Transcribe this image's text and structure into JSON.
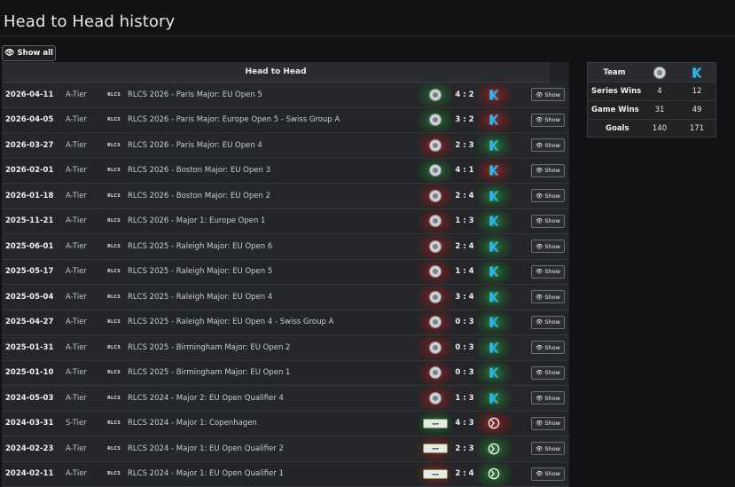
{
  "page": {
    "title": "Head to Head history"
  },
  "controls": {
    "show_all_label": "Show all"
  },
  "h2h": {
    "header": "Head to Head",
    "rows": [
      {
        "date": "2026-04-11",
        "tier": "A-Tier",
        "series": "RLCS",
        "event": "RLCS 2026 - Paris Major: EU Open 5",
        "score": "4 : 2",
        "result": "win",
        "t1_logo": "grey-shield-logo",
        "t2_logo": "blue-k-logo",
        "show": "Show"
      },
      {
        "date": "2026-04-05",
        "tier": "A-Tier",
        "series": "RLCS",
        "event": "RLCS 2026 - Paris Major: Europe Open 5 - Swiss Group A",
        "score": "3 : 2",
        "result": "win",
        "t1_logo": "grey-shield-logo",
        "t2_logo": "blue-k-logo",
        "show": "Show"
      },
      {
        "date": "2026-03-27",
        "tier": "A-Tier",
        "series": "RLCS",
        "event": "RLCS 2026 - Paris Major: EU Open 4",
        "score": "2 : 3",
        "result": "loss",
        "t1_logo": "grey-shield-logo",
        "t2_logo": "blue-k-logo",
        "show": "Show"
      },
      {
        "date": "2026-02-01",
        "tier": "A-Tier",
        "series": "RLCS",
        "event": "RLCS 2026 - Boston Major: EU Open 3",
        "score": "4 : 1",
        "result": "win",
        "t1_logo": "grey-shield-logo",
        "t2_logo": "blue-k-logo",
        "show": "Show"
      },
      {
        "date": "2026-01-18",
        "tier": "A-Tier",
        "series": "RLCS",
        "event": "RLCS 2026 - Boston Major: EU Open 2",
        "score": "2 : 4",
        "result": "loss",
        "t1_logo": "grey-shield-logo",
        "t2_logo": "blue-k-logo",
        "show": "Show"
      },
      {
        "date": "2025-11-21",
        "tier": "A-Tier",
        "series": "RLCS",
        "event": "RLCS 2026 - Major 1: Europe Open 1",
        "score": "1 : 3",
        "result": "loss",
        "t1_logo": "grey-shield-logo",
        "t2_logo": "blue-k-logo",
        "show": "Show"
      },
      {
        "date": "2025-06-01",
        "tier": "A-Tier",
        "series": "RLCS",
        "event": "RLCS 2025 - Raleigh Major: EU Open 6",
        "score": "2 : 4",
        "result": "loss",
        "t1_logo": "grey-shield-logo",
        "t2_logo": "blue-k-logo",
        "show": "Show"
      },
      {
        "date": "2025-05-17",
        "tier": "A-Tier",
        "series": "RLCS",
        "event": "RLCS 2025 - Raleigh Major: EU Open 5",
        "score": "1 : 4",
        "result": "loss",
        "t1_logo": "grey-shield-logo",
        "t2_logo": "blue-k-logo",
        "show": "Show"
      },
      {
        "date": "2025-05-04",
        "tier": "A-Tier",
        "series": "RLCS",
        "event": "RLCS 2025 - Raleigh Major: EU Open 4",
        "score": "3 : 4",
        "result": "loss",
        "t1_logo": "grey-shield-logo",
        "t2_logo": "blue-k-logo",
        "show": "Show"
      },
      {
        "date": "2025-04-27",
        "tier": "A-Tier",
        "series": "RLCS",
        "event": "RLCS 2025 - Raleigh Major: EU Open 4 - Swiss Group A",
        "score": "0 : 3",
        "result": "loss",
        "t1_logo": "grey-shield-logo",
        "t2_logo": "blue-k-logo",
        "show": "Show"
      },
      {
        "date": "2025-01-31",
        "tier": "A-Tier",
        "series": "RLCS",
        "event": "RLCS 2025 - Birmingham Major: EU Open 2",
        "score": "0 : 3",
        "result": "loss",
        "t1_logo": "grey-shield-logo",
        "t2_logo": "blue-k-logo",
        "show": "Show"
      },
      {
        "date": "2025-01-10",
        "tier": "A-Tier",
        "series": "RLCS",
        "event": "RLCS 2025 - Birmingham Major: EU Open 1",
        "score": "0 : 3",
        "result": "loss",
        "t1_logo": "grey-shield-logo",
        "t2_logo": "blue-k-logo",
        "show": "Show"
      },
      {
        "date": "2024-05-03",
        "tier": "A-Tier",
        "series": "RLCS",
        "event": "RLCS 2024 - Major 2: EU Open Qualifier 4",
        "score": "1 : 3",
        "result": "loss",
        "t1_logo": "grey-shield-logo",
        "t2_logo": "blue-k-logo",
        "show": "Show"
      },
      {
        "date": "2024-03-31",
        "tier": "S-Tier",
        "series": "RLCS",
        "event": "RLCS 2024 - Major 1: Copenhagen",
        "score": "4 : 3",
        "result": "win",
        "t1_logo": "banner-logo",
        "t2_logo": "white-k-logo",
        "show": "Show"
      },
      {
        "date": "2024-02-23",
        "tier": "A-Tier",
        "series": "RLCS",
        "event": "RLCS 2024 - Major 1: EU Open Qualifier 2",
        "score": "2 : 3",
        "result": "loss",
        "t1_logo": "banner-logo",
        "t2_logo": "white-k-logo",
        "show": "Show"
      },
      {
        "date": "2024-02-11",
        "tier": "A-Tier",
        "series": "RLCS",
        "event": "RLCS 2024 - Major 1: EU Open Qualifier 1",
        "score": "2 : 4",
        "result": "loss",
        "t1_logo": "banner-logo",
        "t2_logo": "white-k-logo",
        "show": "Show"
      }
    ]
  },
  "team_summary": {
    "header": "Team",
    "team1_logo": "grey-shield-logo",
    "team2_logo": "blue-k-logo",
    "rows": [
      {
        "label": "Series Wins",
        "v1": "4",
        "v2": "12"
      },
      {
        "label": "Game Wins",
        "v1": "31",
        "v2": "49"
      },
      {
        "label": "Goals",
        "v1": "140",
        "v2": "171"
      }
    ]
  },
  "colors": {
    "win": "#2e8c3c",
    "loss": "#aa2828",
    "accent_blue": "#29b6e6"
  }
}
